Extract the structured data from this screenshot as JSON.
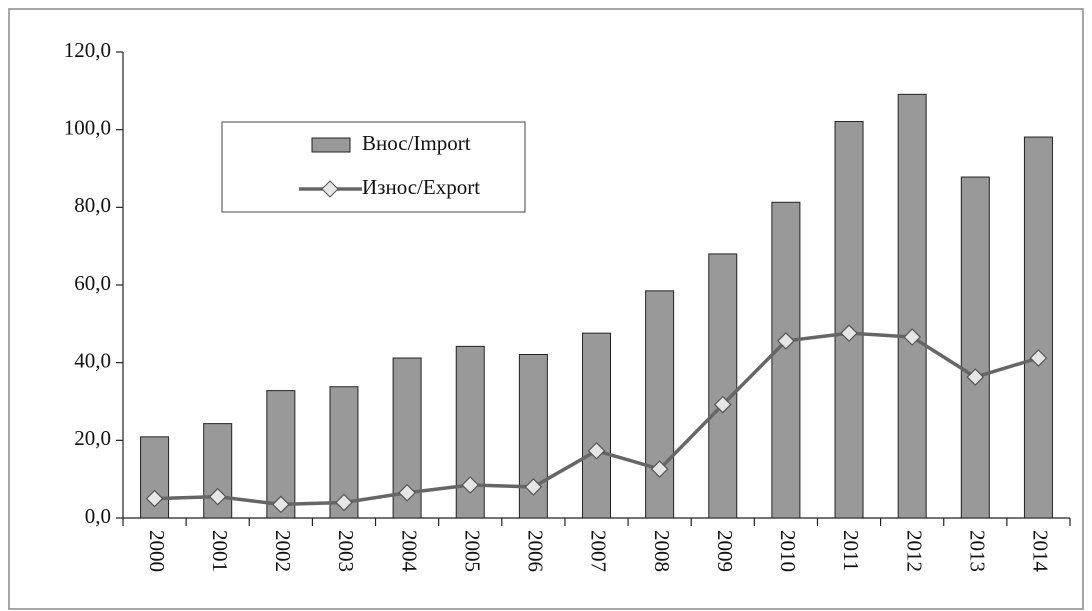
{
  "chart_data": {
    "type": "bar",
    "categories": [
      "2000",
      "2001",
      "2002",
      "2003",
      "2004",
      "2005",
      "2006",
      "2007",
      "2008",
      "2009",
      "2010",
      "2011",
      "2012",
      "2013",
      "2014"
    ],
    "series": [
      {
        "name": "Внос/Import",
        "type": "bar",
        "color": "#999999",
        "values": [
          20.9,
          24.3,
          32.8,
          33.8,
          41.2,
          44.2,
          42.1,
          47.6,
          58.5,
          68.0,
          81.3,
          102.1,
          109.1,
          87.8,
          98.1
        ]
      },
      {
        "name": "Износ/Export",
        "type": "line",
        "color": "#666666",
        "values": [
          5.0,
          5.5,
          3.5,
          4.0,
          6.5,
          8.5,
          8.0,
          17.3,
          12.6,
          29.2,
          45.6,
          47.6,
          46.6,
          36.3,
          41.2
        ]
      }
    ],
    "ylim": [
      0,
      120
    ],
    "yticks": [
      {
        "value": 0,
        "label": "0,0"
      },
      {
        "value": 20,
        "label": "20,0"
      },
      {
        "value": 40,
        "label": "40,0"
      },
      {
        "value": 60,
        "label": "60,0"
      },
      {
        "value": 80,
        "label": "80,0"
      },
      {
        "value": 100,
        "label": "100,0"
      },
      {
        "value": 120,
        "label": "120,0"
      }
    ],
    "grid": false,
    "legend": "upper left"
  }
}
